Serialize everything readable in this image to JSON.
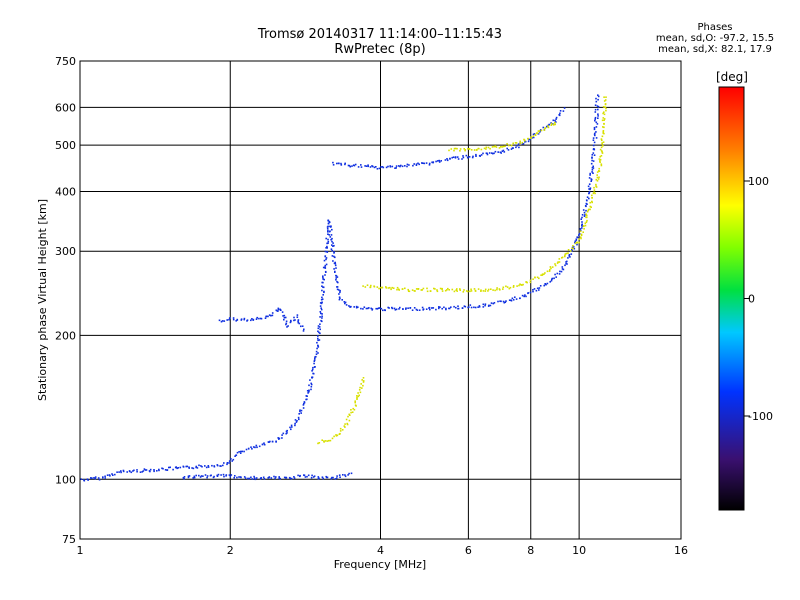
{
  "title_line1": "Tromsø 20140317 11:14:00–11:15:43",
  "title_line2": "RwPretec (8p)",
  "phases": {
    "heading": "Phases",
    "line_o": "mean, sd,O: -97.2, 15.5",
    "line_x": "mean, sd,X:  82.1, 17.9"
  },
  "chart_data": {
    "type": "scatter",
    "xlabel": "Frequency [MHz]",
    "ylabel": "Stationary phase Virtual Height [km]",
    "xscale": "log",
    "yscale": "log",
    "xlim": [
      1,
      16
    ],
    "ylim": [
      75,
      750
    ],
    "xticks": [
      1,
      2,
      4,
      6,
      8,
      10,
      16
    ],
    "yticks": [
      75,
      100,
      200,
      300,
      400,
      500,
      600,
      750
    ],
    "grid": true,
    "colorbar": {
      "label": "[deg]",
      "range": [
        -180,
        180
      ],
      "ticks": [
        -100,
        0,
        100
      ]
    },
    "series": [
      {
        "points": [
          [
            1.0,
            100
          ],
          [
            1.1,
            101
          ],
          [
            1.2,
            104
          ],
          [
            1.4,
            105
          ],
          [
            1.6,
            106
          ],
          [
            1.8,
            107
          ],
          [
            1.95,
            108
          ],
          [
            2.0,
            110
          ],
          [
            2.1,
            115
          ],
          [
            2.3,
            118
          ],
          [
            2.5,
            122
          ],
          [
            2.7,
            132
          ],
          [
            2.85,
            150
          ],
          [
            2.95,
            175
          ],
          [
            3.0,
            200
          ],
          [
            3.05,
            240
          ],
          [
            3.1,
            300
          ],
          [
            3.15,
            350
          ],
          [
            3.2,
            300
          ],
          [
            3.3,
            240
          ],
          [
            3.5,
            230
          ],
          [
            3.8,
            228
          ],
          [
            4.5,
            228
          ],
          [
            5.5,
            229
          ],
          [
            6.5,
            232
          ],
          [
            7.5,
            240
          ],
          [
            8.5,
            255
          ],
          [
            9.2,
            275
          ],
          [
            9.8,
            310
          ],
          [
            10.2,
            360
          ],
          [
            10.5,
            420
          ],
          [
            10.7,
            500
          ],
          [
            10.8,
            580
          ],
          [
            10.85,
            640
          ]
        ],
        "phase": -100
      },
      {
        "points": [
          [
            3.2,
            460
          ],
          [
            3.5,
            455
          ],
          [
            4.0,
            450
          ],
          [
            4.5,
            455
          ],
          [
            5.0,
            460
          ],
          [
            5.5,
            470
          ],
          [
            6.0,
            475
          ],
          [
            6.5,
            480
          ],
          [
            7.0,
            485
          ],
          [
            7.5,
            500
          ],
          [
            8.0,
            520
          ],
          [
            8.5,
            545
          ],
          [
            9.0,
            570
          ],
          [
            9.3,
            600
          ]
        ],
        "phase": -100
      },
      {
        "points": [
          [
            1.9,
            215
          ],
          [
            2.0,
            217
          ],
          [
            2.1,
            216
          ],
          [
            2.4,
            220
          ],
          [
            2.5,
            230
          ],
          [
            2.6,
            210
          ],
          [
            2.7,
            220
          ],
          [
            2.8,
            205
          ]
        ],
        "phase": -100
      },
      {
        "points": [
          [
            1.6,
            101
          ],
          [
            1.8,
            102
          ],
          [
            2.0,
            102
          ],
          [
            2.2,
            101
          ],
          [
            2.4,
            101
          ],
          [
            2.6,
            101
          ],
          [
            2.8,
            102
          ],
          [
            3.0,
            101
          ],
          [
            3.2,
            101
          ],
          [
            3.5,
            103
          ]
        ],
        "phase": -100
      },
      {
        "points": [
          [
            3.7,
            255
          ],
          [
            4.0,
            253
          ],
          [
            4.5,
            250
          ],
          [
            5.0,
            250
          ],
          [
            5.5,
            250
          ],
          [
            6.0,
            249
          ],
          [
            6.5,
            250
          ],
          [
            7.0,
            252
          ],
          [
            7.5,
            255
          ],
          [
            8.0,
            262
          ],
          [
            8.5,
            270
          ],
          [
            9.0,
            285
          ],
          [
            9.5,
            300
          ],
          [
            10.0,
            320
          ],
          [
            10.3,
            350
          ],
          [
            10.6,
            390
          ],
          [
            10.8,
            420
          ],
          [
            11.0,
            460
          ],
          [
            11.1,
            520
          ],
          [
            11.2,
            580
          ],
          [
            11.25,
            640
          ]
        ],
        "phase": 100
      },
      {
        "points": [
          [
            3.0,
            120
          ],
          [
            3.2,
            122
          ],
          [
            3.4,
            130
          ],
          [
            3.5,
            140
          ],
          [
            3.6,
            150
          ],
          [
            3.7,
            165
          ]
        ],
        "phase": 100
      },
      {
        "points": [
          [
            5.5,
            490
          ],
          [
            6.0,
            492
          ],
          [
            6.5,
            495
          ],
          [
            7.0,
            500
          ],
          [
            7.5,
            505
          ],
          [
            8.0,
            520
          ],
          [
            8.5,
            545
          ],
          [
            9.0,
            560
          ]
        ],
        "phase": 100
      }
    ]
  }
}
